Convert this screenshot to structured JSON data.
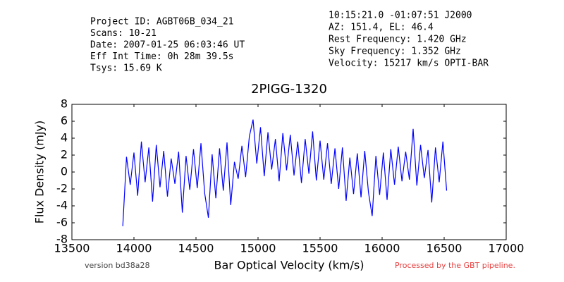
{
  "chart_data": {
    "type": "line",
    "title": "2PIGG-1320",
    "info_left": [
      "Project ID: AGBT06B_034_21",
      "Scans: 10-21",
      "Date: 2007-01-25 06:03:46 UT",
      "Eff Int Time: 0h 28m 39.5s",
      "Tsys: 15.69 K"
    ],
    "info_right": [
      "10:15:21.0 -01:07:51 J2000",
      "AZ: 151.4, EL: 46.4",
      "Rest Frequency:   1.420 GHz",
      "Sky Frequency:    1.352 GHz",
      "Velocity: 15217 km/s OPTI-BAR"
    ],
    "version": "version bd38a28",
    "footer": "Processed by the GBT pipeline.",
    "xlabel": "Bar Optical Velocity (km/s)",
    "ylabel": "Flux Density (mJy)",
    "xlim": [
      13500,
      17000
    ],
    "xticks": [
      13500,
      14000,
      14500,
      15000,
      15500,
      16000,
      16500,
      17000
    ],
    "ylim": [
      -8,
      8
    ],
    "yticks": [
      -8,
      -6,
      -4,
      -2,
      0,
      2,
      4,
      6,
      8
    ],
    "color": "#0000ff",
    "x": [
      13910,
      13940,
      13970,
      14000,
      14030,
      14060,
      14090,
      14120,
      14150,
      14180,
      14210,
      14240,
      14270,
      14300,
      14330,
      14360,
      14390,
      14420,
      14450,
      14480,
      14510,
      14540,
      14570,
      14600,
      14630,
      14660,
      14690,
      14720,
      14750,
      14780,
      14810,
      14840,
      14870,
      14900,
      14930,
      14960,
      14990,
      15020,
      15050,
      15080,
      15110,
      15140,
      15170,
      15200,
      15230,
      15260,
      15290,
      15320,
      15350,
      15380,
      15410,
      15440,
      15470,
      15500,
      15530,
      15560,
      15590,
      15620,
      15650,
      15680,
      15710,
      15740,
      15770,
      15800,
      15830,
      15860,
      15890,
      15920,
      15950,
      15980,
      16010,
      16040,
      16070,
      16100,
      16130,
      16160,
      16190,
      16220,
      16250,
      16280,
      16310,
      16340,
      16370,
      16400,
      16430,
      16460,
      16490,
      16520
    ],
    "values": [
      -6.4,
      1.8,
      -1.5,
      2.3,
      -2.8,
      3.6,
      -1.2,
      2.9,
      -3.5,
      3.2,
      -1.8,
      2.5,
      -2.9,
      1.6,
      -1.4,
      2.4,
      -4.8,
      1.9,
      -2.1,
      2.7,
      -1.9,
      3.4,
      -2.5,
      -5.4,
      2.1,
      -3.1,
      2.8,
      -2.2,
      3.5,
      -3.9,
      1.2,
      -0.8,
      3.1,
      -0.6,
      4.2,
      6.2,
      1.0,
      5.3,
      -0.5,
      4.7,
      0.3,
      3.9,
      -1.1,
      4.6,
      0.2,
      4.4,
      -0.4,
      3.6,
      -1.3,
      3.9,
      -0.2,
      4.8,
      -1.0,
      3.7,
      -0.9,
      3.4,
      -1.4,
      2.8,
      -2.0,
      2.9,
      -3.4,
      1.7,
      -2.6,
      2.2,
      -3.0,
      2.5,
      -2.4,
      -5.2,
      1.9,
      -2.7,
      2.3,
      -3.3,
      2.7,
      -1.5,
      3.0,
      -1.1,
      2.4,
      -0.9,
      5.1,
      -1.6,
      3.2,
      -0.7,
      2.6,
      -3.6,
      2.9,
      -1.2,
      3.6,
      -2.2
    ]
  }
}
